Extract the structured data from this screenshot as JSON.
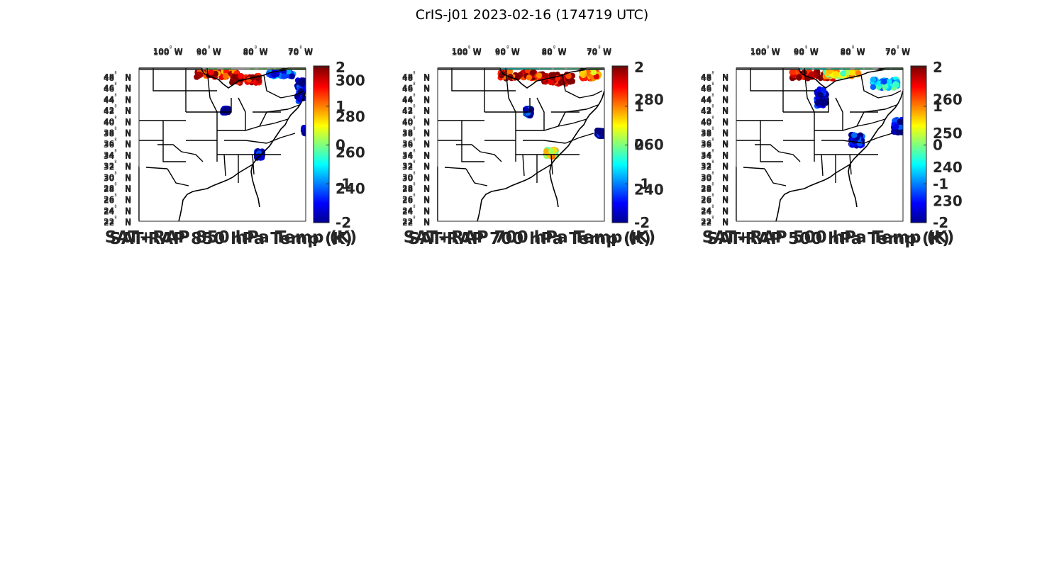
{
  "figure": {
    "title": "CrIS-j01 2023-02-16 (174719 UTC)"
  },
  "map_axes": {
    "longitude_labels": [
      "100",
      "90",
      "80",
      "70"
    ],
    "longitude_hemisphere": "W",
    "latitude_labels": [
      "48",
      "46",
      "44",
      "42",
      "40",
      "38",
      "36",
      "34",
      "32",
      "30",
      "28",
      "26",
      "24",
      "22"
    ],
    "latitude_hemisphere": "N",
    "degree_symbol": "°"
  },
  "colormap": "jet",
  "panels": [
    {
      "id": "sat-rap-sum-850",
      "label": "SAT+RAP 850 hPa Temp (K)",
      "type": "sum",
      "colorbar": {
        "min": 222,
        "max": 308,
        "ticks": [
          300,
          280,
          260,
          240
        ]
      },
      "data_range": [
        262,
        290
      ]
    },
    {
      "id": "sat-rap-sum-700",
      "label": "SAT+RAP 700 hPa Temp (K)",
      "type": "sum",
      "colorbar": {
        "min": 226,
        "max": 295,
        "ticks": [
          280,
          260,
          240
        ]
      },
      "data_range": [
        252,
        282
      ]
    },
    {
      "id": "sat-rap-sum-500",
      "label": "SAT+RAP 500 hPa Temp (K)",
      "type": "sum",
      "colorbar": {
        "min": 224,
        "max": 270,
        "ticks": [
          260,
          250,
          240,
          230
        ]
      },
      "data_range": [
        242,
        260
      ]
    },
    {
      "id": "sat-rap-diff-850",
      "label": "SAT-RAP 850 hPa Temp (K)",
      "type": "diff",
      "colorbar": {
        "min": -2,
        "max": 2,
        "ticks": [
          2,
          1,
          0,
          -1,
          -2
        ]
      }
    },
    {
      "id": "sat-rap-diff-700",
      "label": "SAT-RAP 700 hPa Temp (K)",
      "type": "diff",
      "colorbar": {
        "min": -2,
        "max": 2,
        "ticks": [
          2,
          1,
          0,
          -1,
          -2
        ]
      }
    },
    {
      "id": "sat-rap-diff-500",
      "label": "SAT-RAP 500 hPa Temp (K)",
      "type": "diff",
      "colorbar": {
        "min": -2,
        "max": 2,
        "ticks": [
          2,
          1,
          0,
          -1,
          -2
        ]
      }
    }
  ]
}
